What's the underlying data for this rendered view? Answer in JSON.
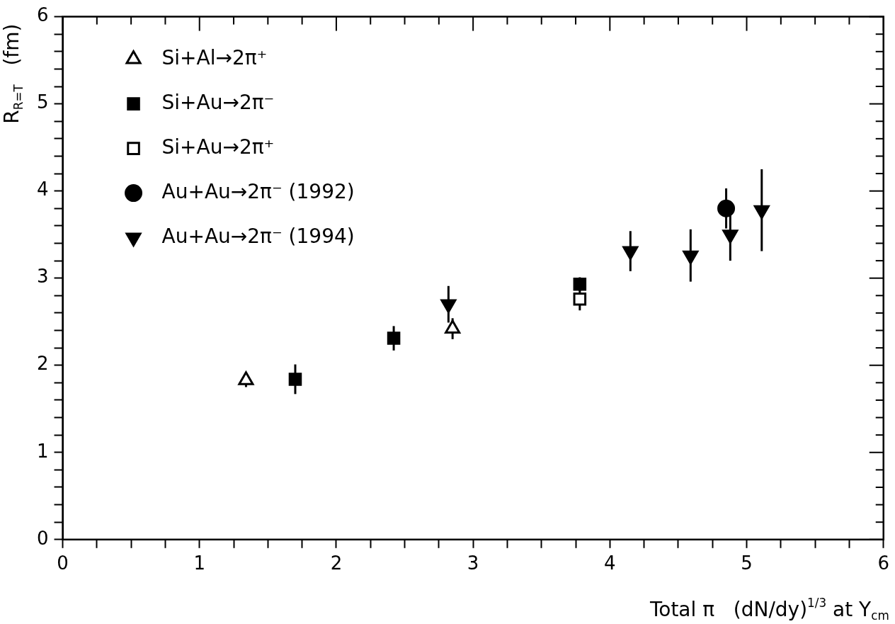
{
  "chart_data": {
    "type": "scatter",
    "xlabel": "Total π   (dN/dy)$^{1/3}$ at Y$_{cm}$",
    "ylabel": "R$_{R=T}$   (fm)",
    "xlim": [
      0,
      6
    ],
    "ylim": [
      0,
      6
    ],
    "xticks": [
      0,
      {
        "value": 0.25,
        "label": null
      },
      {
        "value": 0.5,
        "label": null
      },
      {
        "value": 0.75,
        "label": null
      },
      1,
      {
        "value": 1.25,
        "label": null
      },
      {
        "value": 1.5,
        "label": null
      },
      {
        "value": 1.75,
        "label": null
      },
      2,
      {
        "value": 2.25,
        "label": null
      },
      {
        "value": 2.5,
        "label": null
      },
      {
        "value": 2.75,
        "label": null
      },
      3,
      {
        "value": 3.25,
        "label": null
      },
      {
        "value": 3.5,
        "label": null
      },
      {
        "value": 3.75,
        "label": null
      },
      4,
      {
        "value": 4.25,
        "label": null
      },
      {
        "value": 4.5,
        "label": null
      },
      {
        "value": 4.75,
        "label": null
      },
      5,
      {
        "value": 5.25,
        "label": null
      },
      {
        "value": 5.5,
        "label": null
      },
      {
        "value": 5.75,
        "label": null
      },
      6
    ],
    "yticks": [
      0,
      {
        "value": 0.2,
        "label": null
      },
      {
        "value": 0.4,
        "label": null
      },
      {
        "value": 0.6,
        "label": null
      },
      {
        "value": 0.8,
        "label": null
      },
      1,
      {
        "value": 1.2,
        "label": null
      },
      {
        "value": 1.4,
        "label": null
      },
      {
        "value": 1.6,
        "label": null
      },
      {
        "value": 1.8,
        "label": null
      },
      2,
      {
        "value": 2.2,
        "label": null
      },
      {
        "value": 2.4,
        "label": null
      },
      {
        "value": 2.6,
        "label": null
      },
      {
        "value": 2.8,
        "label": null
      },
      3,
      {
        "value": 3.2,
        "label": null
      },
      {
        "value": 3.4,
        "label": null
      },
      {
        "value": 3.6,
        "label": null
      },
      {
        "value": 3.8,
        "label": null
      },
      4,
      {
        "value": 4.2,
        "label": null
      },
      {
        "value": 4.4,
        "label": null
      },
      {
        "value": 4.6,
        "label": null
      },
      {
        "value": 4.8,
        "label": null
      },
      5,
      {
        "value": 5.2,
        "label": null
      },
      {
        "value": 5.4,
        "label": null
      },
      {
        "value": 5.6,
        "label": null
      },
      {
        "value": 5.8,
        "label": null
      },
      6
    ],
    "grid": false,
    "legend": "top left",
    "series": [
      {
        "name": "Si+Al→2π⁺",
        "color": "#ffffff",
        "marker": "triangle",
        "x": [
          1.34,
          2.85
        ],
        "values": [
          1.83,
          2.42
        ],
        "errors": [
          0.08,
          0.12
        ]
      },
      {
        "name": "Si+Au→2π⁻",
        "color": "#000000",
        "marker": "square",
        "x": [
          1.7,
          2.42,
          3.78
        ],
        "values": [
          1.84,
          2.31,
          2.93
        ],
        "errors": [
          0.17,
          0.14,
          0.08
        ]
      },
      {
        "name": "Si+Au→2π⁺",
        "color": "#ffffff",
        "marker": "square",
        "x": [
          3.78
        ],
        "values": [
          2.76
        ],
        "errors": [
          0.13
        ]
      },
      {
        "name": "Au+Au→2π⁻ (1992)",
        "color": "#000000",
        "marker": "circle",
        "x": [
          4.85
        ],
        "values": [
          3.8
        ],
        "errors": [
          0.23
        ]
      },
      {
        "name": "Au+Au→2π⁻ (1994)",
        "color": "#000000",
        "marker": "triangle-down",
        "x": [
          2.82,
          4.15,
          4.59,
          4.88,
          5.11
        ],
        "values": [
          2.7,
          3.31,
          3.26,
          3.5,
          3.78
        ],
        "errors": [
          0.21,
          0.23,
          0.3,
          0.3,
          0.47
        ]
      }
    ]
  }
}
